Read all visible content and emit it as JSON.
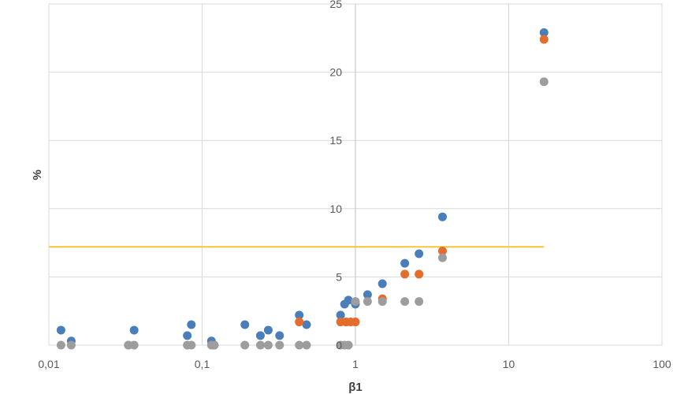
{
  "chart_data": {
    "type": "scatter",
    "title": "",
    "xlabel": "β1",
    "ylabel": "%",
    "x_scale": "log",
    "xlim": [
      0.01,
      100
    ],
    "ylim": [
      0,
      25
    ],
    "x_ticks": [
      {
        "value": 0.01,
        "label": "0,01"
      },
      {
        "value": 0.1,
        "label": "0,1"
      },
      {
        "value": 1,
        "label": "1"
      },
      {
        "value": 10,
        "label": "10"
      },
      {
        "value": 100,
        "label": "100"
      }
    ],
    "y_ticks": [
      {
        "value": 0,
        "label": "0"
      },
      {
        "value": 5,
        "label": "5"
      },
      {
        "value": 10,
        "label": "10"
      },
      {
        "value": 15,
        "label": "15"
      },
      {
        "value": 20,
        "label": "20"
      },
      {
        "value": 25,
        "label": "25"
      }
    ],
    "grid": true,
    "legend": "none",
    "series": [
      {
        "color": "#4a7ebb",
        "x": [
          0.012,
          0.014,
          0.033,
          0.036,
          0.08,
          0.085,
          0.115,
          0.12,
          0.19,
          0.24,
          0.27,
          0.32,
          0.43,
          0.48,
          0.8,
          0.85,
          0.9,
          1.0,
          1.2,
          1.5,
          2.1,
          2.6,
          3.7,
          17
        ],
        "y": [
          1.1,
          0.3,
          0.0,
          1.1,
          0.7,
          1.5,
          0.3,
          0.0,
          1.5,
          0.7,
          1.1,
          0.7,
          2.2,
          1.5,
          2.2,
          3.0,
          3.3,
          3.0,
          3.7,
          4.5,
          6.0,
          6.7,
          9.4,
          22.9
        ]
      },
      {
        "color": "#e46c2d",
        "x": [
          0.43,
          0.8,
          0.87,
          0.93,
          1.0,
          1.5,
          2.1,
          2.6,
          3.7,
          17
        ],
        "y": [
          1.7,
          1.7,
          1.7,
          1.7,
          1.7,
          3.4,
          5.2,
          5.2,
          6.9,
          22.4
        ]
      },
      {
        "color": "#9d9d9d",
        "x": [
          0.012,
          0.014,
          0.033,
          0.036,
          0.08,
          0.085,
          0.115,
          0.12,
          0.19,
          0.24,
          0.27,
          0.32,
          0.43,
          0.48,
          0.8,
          0.85,
          0.9,
          1.0,
          1.2,
          1.5,
          2.1,
          2.6,
          3.7,
          17
        ],
        "y": [
          0,
          0,
          0,
          0,
          0,
          0,
          0,
          0,
          0,
          0,
          0,
          0,
          0,
          0,
          0,
          0,
          0,
          3.2,
          3.2,
          3.2,
          3.2,
          3.2,
          6.4,
          19.3
        ]
      }
    ],
    "reference_lines": [
      {
        "orientation": "horizontal",
        "y": 7.2,
        "x_from": 0.01,
        "x_to": 17,
        "color": "#f5c53a"
      }
    ]
  }
}
